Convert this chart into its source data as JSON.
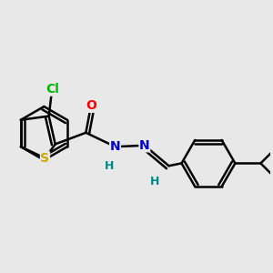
{
  "bg_color": "#e8e8e8",
  "bond_color": "#000000",
  "bond_width": 1.8,
  "dbo": 0.055,
  "atoms": {
    "S": {
      "color": "#ccaa00",
      "fontsize": 10,
      "fontweight": "bold"
    },
    "O": {
      "color": "#ff0000",
      "fontsize": 10,
      "fontweight": "bold"
    },
    "N": {
      "color": "#0000cc",
      "fontsize": 10,
      "fontweight": "bold"
    },
    "Cl": {
      "color": "#00bb00",
      "fontsize": 10,
      "fontweight": "bold"
    },
    "H": {
      "color": "#008888",
      "fontsize": 9,
      "fontweight": "bold"
    }
  },
  "xlim": [
    -1.6,
    2.6
  ],
  "ylim": [
    -1.1,
    1.1
  ]
}
